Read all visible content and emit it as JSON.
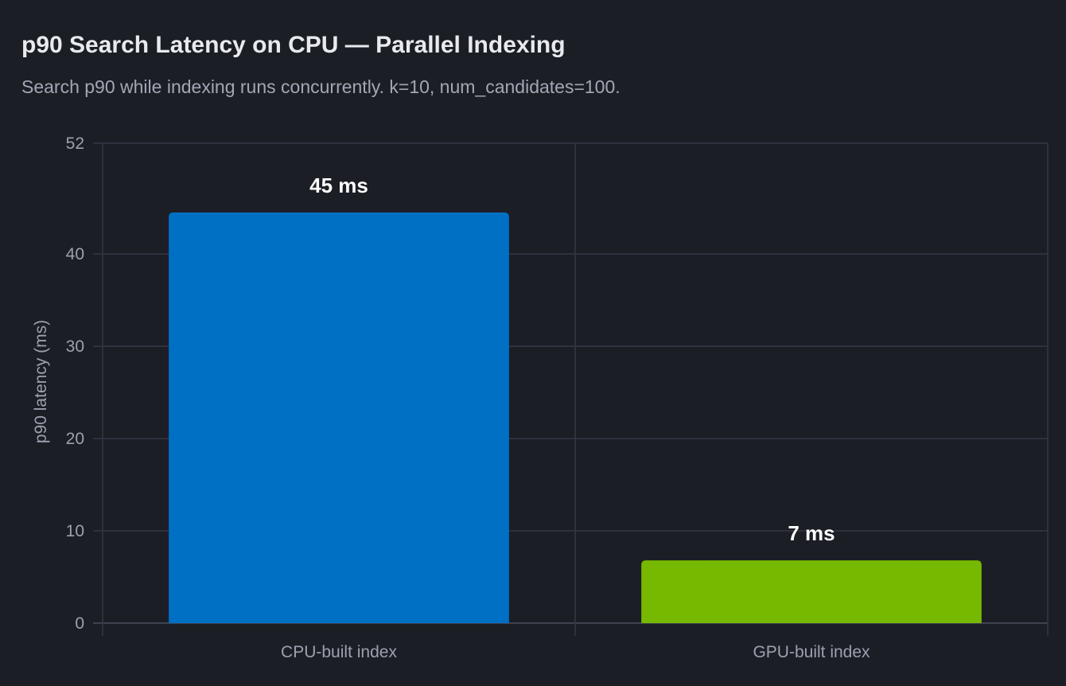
{
  "header": {
    "title": "p90 Search Latency on CPU — Parallel Indexing",
    "subtitle": "Search p90 while indexing runs concurrently. k=10, num_candidates=100."
  },
  "chart_data": {
    "type": "bar",
    "title": "p90 Search Latency on CPU — Parallel Indexing",
    "subtitle": "Search p90 while indexing runs concurrently. k=10, num_candidates=100.",
    "categories": [
      "CPU-built index",
      "GPU-built index"
    ],
    "values": [
      44.5,
      6.8
    ],
    "data_labels": [
      "45 ms",
      "7 ms"
    ],
    "bar_colors": [
      "#0070c5",
      "#76b900"
    ],
    "xlabel": "",
    "ylabel": "p90 latency (ms)",
    "ylim": [
      0,
      52
    ],
    "yticks": [
      0,
      10,
      20,
      30,
      40,
      52
    ],
    "grid": true,
    "legend": "none"
  }
}
